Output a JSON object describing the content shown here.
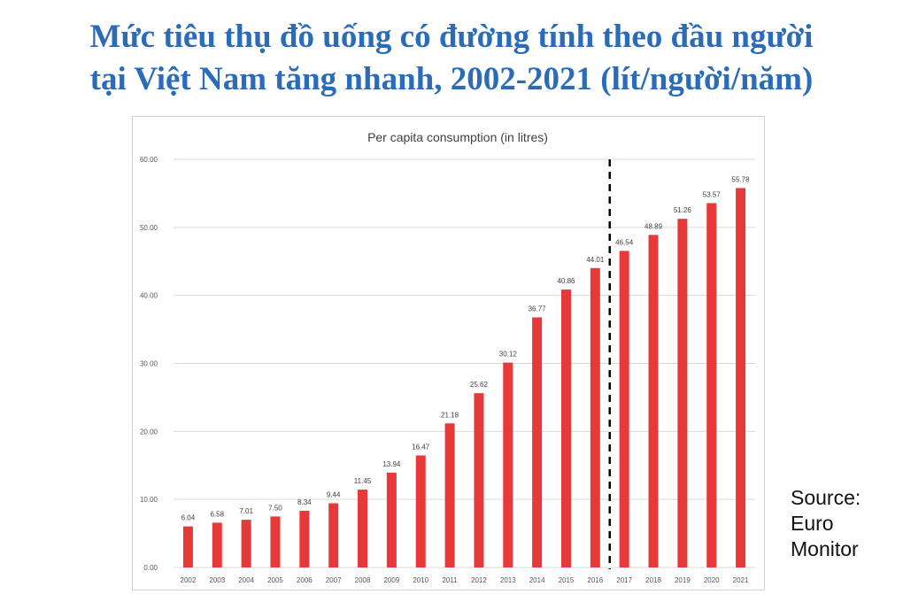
{
  "headline": {
    "line1": "Mức tiêu thụ đồ uống có đường tính theo đầu người",
    "line2": "tại Việt Nam tăng nhanh, 2002-2021 (lít/người/năm)"
  },
  "source": {
    "line1": "Source:",
    "line2": "Euro",
    "line3": "Monitor"
  },
  "colors": {
    "headline": "#2b6cb8",
    "bar": "#e8393a",
    "divider": "#000000"
  },
  "chart_data": {
    "type": "bar",
    "title": "Per capita consumption (in litres)",
    "categories": [
      "2002",
      "2003",
      "2004",
      "2005",
      "2006",
      "2007",
      "2008",
      "2009",
      "2010",
      "2011",
      "2012",
      "2013",
      "2014",
      "2015",
      "2016",
      "2017",
      "2018",
      "2019",
      "2020",
      "2021"
    ],
    "values": [
      6.04,
      6.58,
      7.01,
      7.5,
      8.34,
      9.44,
      11.45,
      13.94,
      16.47,
      21.18,
      25.62,
      30.12,
      36.77,
      40.86,
      44.01,
      46.54,
      48.89,
      51.26,
      53.57,
      55.78
    ],
    "data_labels": [
      "6.04",
      "6.58",
      "7.01",
      "7.50",
      "8.34",
      "9.44",
      "11.45",
      "13.94",
      "16.47",
      "21.18",
      "25.62",
      "30.12",
      "36.77",
      "40.86",
      "44.01",
      "46.54",
      "48.89",
      "51.26",
      "53.57",
      "55.78"
    ],
    "y_ticks": [
      "0.00",
      "10.00",
      "20.00",
      "30.00",
      "40.00",
      "50.00",
      "60.00"
    ],
    "ylim": [
      0,
      60
    ],
    "grid": true,
    "legend": "none",
    "divider_between": [
      "2016",
      "2017"
    ]
  }
}
